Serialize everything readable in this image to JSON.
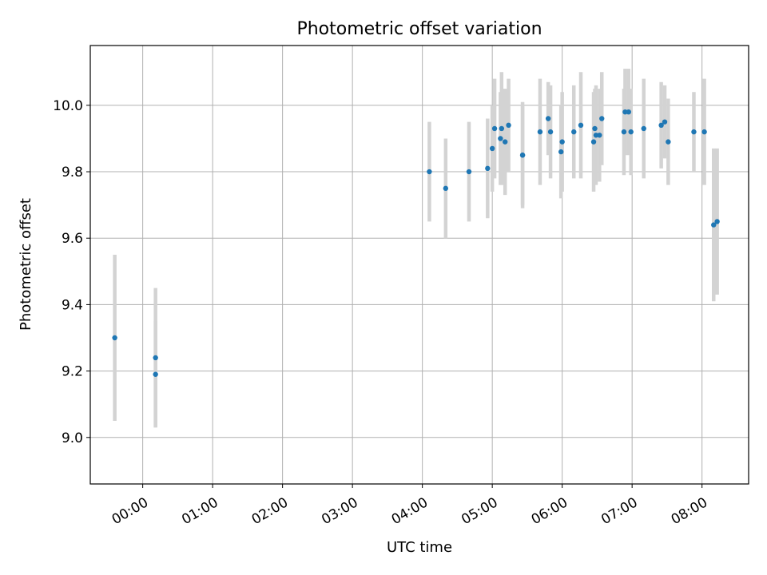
{
  "chart_data": {
    "type": "scatter",
    "title": "Photometric offset variation",
    "xlabel": "UTC time",
    "ylabel": "Photometric offset",
    "xlim": [
      "23:15",
      "08:40"
    ],
    "ylim": [
      8.86,
      10.18
    ],
    "grid": true,
    "x_ticks": [
      "00:00",
      "01:00",
      "02:00",
      "03:00",
      "04:00",
      "05:00",
      "06:00",
      "07:00",
      "08:00"
    ],
    "y_ticks": [
      9.0,
      9.2,
      9.4,
      9.6,
      9.8,
      10.0
    ],
    "y_tick_labels": [
      "9.0",
      "9.2",
      "9.4",
      "9.6",
      "9.8",
      "10.0"
    ],
    "colors": {
      "marker": "#1f77b4",
      "errorbar": "#d3d3d3",
      "grid": "#b0b0b0"
    },
    "points": [
      {
        "time": "23:36",
        "y": 9.3,
        "err": 0.25
      },
      {
        "time": "00:11",
        "y": 9.24,
        "err": 0.21
      },
      {
        "time": "00:11",
        "y": 9.19,
        "err": 0.16
      },
      {
        "time": "04:06",
        "y": 9.8,
        "err": 0.15
      },
      {
        "time": "04:20",
        "y": 9.75,
        "err": 0.15
      },
      {
        "time": "04:40",
        "y": 9.8,
        "err": 0.15
      },
      {
        "time": "04:56",
        "y": 9.81,
        "err": 0.15
      },
      {
        "time": "05:00",
        "y": 9.87,
        "err": 0.13
      },
      {
        "time": "05:02",
        "y": 9.93,
        "err": 0.15
      },
      {
        "time": "05:07",
        "y": 9.9,
        "err": 0.14
      },
      {
        "time": "05:08",
        "y": 9.93,
        "err": 0.17
      },
      {
        "time": "05:11",
        "y": 9.89,
        "err": 0.16
      },
      {
        "time": "05:14",
        "y": 9.94,
        "err": 0.14
      },
      {
        "time": "05:26",
        "y": 9.85,
        "err": 0.16
      },
      {
        "time": "05:26",
        "y": 9.85,
        "err": 0.15
      },
      {
        "time": "05:41",
        "y": 9.92,
        "err": 0.16
      },
      {
        "time": "05:48",
        "y": 9.96,
        "err": 0.11
      },
      {
        "time": "05:50",
        "y": 9.92,
        "err": 0.14
      },
      {
        "time": "05:59",
        "y": 9.86,
        "err": 0.14
      },
      {
        "time": "06:00",
        "y": 9.89,
        "err": 0.15
      },
      {
        "time": "06:10",
        "y": 9.92,
        "err": 0.14
      },
      {
        "time": "06:16",
        "y": 9.94,
        "err": 0.16
      },
      {
        "time": "06:27",
        "y": 9.89,
        "err": 0.15
      },
      {
        "time": "06:28",
        "y": 9.93,
        "err": 0.12
      },
      {
        "time": "06:29",
        "y": 9.91,
        "err": 0.15
      },
      {
        "time": "06:32",
        "y": 9.91,
        "err": 0.14
      },
      {
        "time": "06:34",
        "y": 9.96,
        "err": 0.14
      },
      {
        "time": "06:53",
        "y": 9.92,
        "err": 0.13
      },
      {
        "time": "06:54",
        "y": 9.98,
        "err": 0.13
      },
      {
        "time": "06:57",
        "y": 9.98,
        "err": 0.13
      },
      {
        "time": "06:59",
        "y": 9.92,
        "err": 0.13
      },
      {
        "time": "07:10",
        "y": 9.93,
        "err": 0.15
      },
      {
        "time": "07:25",
        "y": 9.94,
        "err": 0.13
      },
      {
        "time": "07:28",
        "y": 9.95,
        "err": 0.11
      },
      {
        "time": "07:31",
        "y": 9.89,
        "err": 0.13
      },
      {
        "time": "07:53",
        "y": 9.92,
        "err": 0.12
      },
      {
        "time": "08:02",
        "y": 9.92,
        "err": 0.16
      },
      {
        "time": "08:10",
        "y": 9.64,
        "err": 0.23
      },
      {
        "time": "08:13",
        "y": 9.65,
        "err": 0.22
      }
    ]
  }
}
